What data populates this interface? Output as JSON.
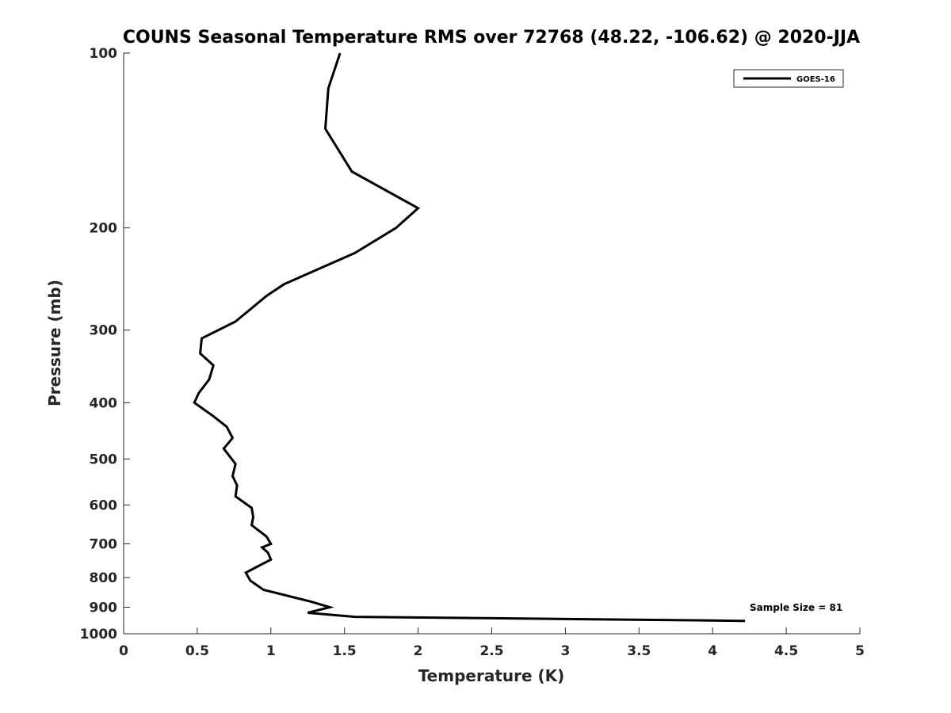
{
  "chart_data": {
    "type": "line",
    "title": "COUNS Seasonal Temperature RMS over 72768 (48.22, -106.62) @ 2020-JJA",
    "xlabel": "Temperature (K)",
    "ylabel": "Pressure (mb)",
    "xlim": [
      0,
      5
    ],
    "ylim": [
      1000,
      100
    ],
    "y_scale": "log",
    "x_ticks": [
      "0",
      "0.5",
      "1",
      "1.5",
      "2",
      "2.5",
      "3",
      "3.5",
      "4",
      "4.5",
      "5"
    ],
    "y_ticks": [
      "100",
      "200",
      "300",
      "400",
      "500",
      "600",
      "700",
      "800",
      "900",
      "1000"
    ],
    "grid": false,
    "legend": {
      "position": "top-right"
    },
    "annotation": "Sample Size = 81",
    "series": [
      {
        "name": "GOES-16",
        "color": "#000000",
        "points": [
          [
            1.47,
            100
          ],
          [
            1.39,
            115
          ],
          [
            1.37,
            135
          ],
          [
            1.55,
            160
          ],
          [
            2.0,
            185
          ],
          [
            1.85,
            200
          ],
          [
            1.57,
            221
          ],
          [
            1.09,
            250
          ],
          [
            0.97,
            262
          ],
          [
            0.76,
            290
          ],
          [
            0.53,
            310
          ],
          [
            0.52,
            329
          ],
          [
            0.61,
            345
          ],
          [
            0.58,
            365
          ],
          [
            0.51,
            385
          ],
          [
            0.48,
            400
          ],
          [
            0.61,
            422
          ],
          [
            0.7,
            440
          ],
          [
            0.74,
            460
          ],
          [
            0.68,
            480
          ],
          [
            0.76,
            510
          ],
          [
            0.74,
            535
          ],
          [
            0.77,
            555
          ],
          [
            0.76,
            580
          ],
          [
            0.87,
            607
          ],
          [
            0.88,
            630
          ],
          [
            0.87,
            650
          ],
          [
            0.97,
            680
          ],
          [
            1.0,
            700
          ],
          [
            0.94,
            710
          ],
          [
            0.98,
            725
          ],
          [
            1.0,
            745
          ],
          [
            0.9,
            768
          ],
          [
            0.83,
            785
          ],
          [
            0.86,
            810
          ],
          [
            0.95,
            840
          ],
          [
            1.27,
            880
          ],
          [
            1.4,
            900
          ],
          [
            1.25,
            920
          ],
          [
            1.57,
            935
          ],
          [
            4.22,
            950
          ]
        ]
      }
    ]
  }
}
